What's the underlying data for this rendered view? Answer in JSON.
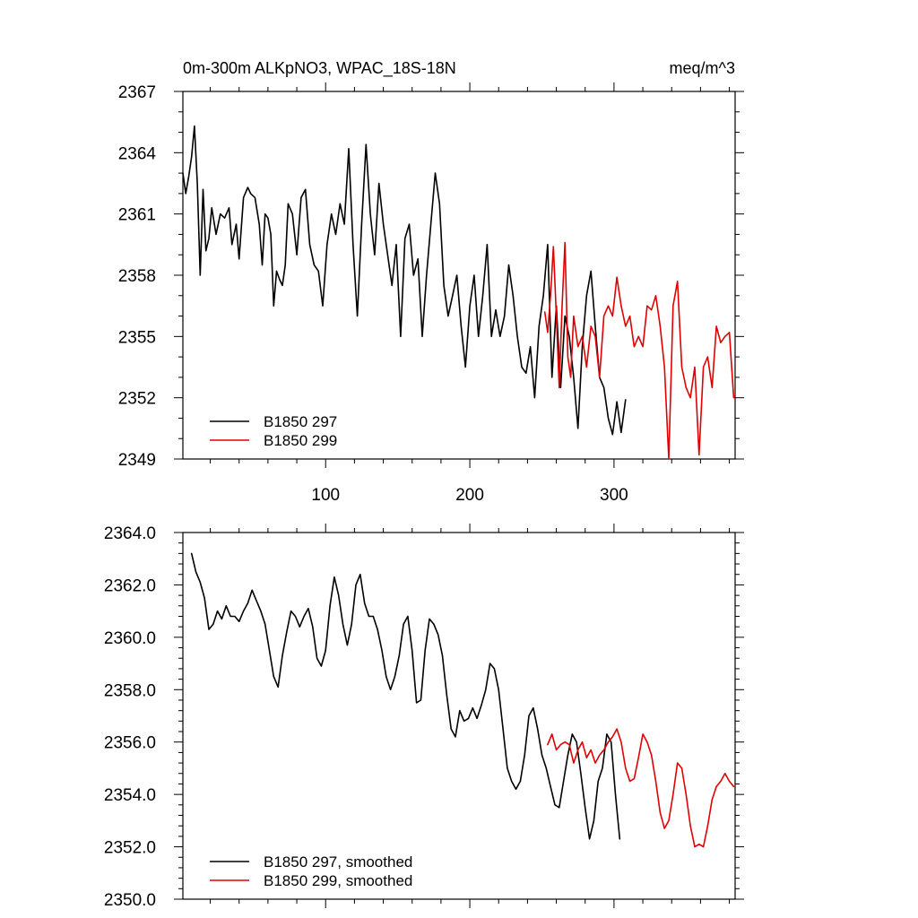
{
  "figure": {
    "title_left": "0m-300m ALKpNO3, WPAC_18S-18N",
    "title_right": "meq/m^3"
  },
  "colors": {
    "series_297": "#000000",
    "series_299": "#e00000"
  },
  "chart_data": [
    {
      "type": "line",
      "title": "0m-300m ALKpNO3, WPAC_18S-18N",
      "units": "meq/m^3",
      "xlim": [
        1,
        384
      ],
      "ylim": [
        2349,
        2367
      ],
      "xticks": [
        100,
        200,
        300
      ],
      "xtick_labels": [
        "100",
        "200",
        "300"
      ],
      "yticks": [
        2349,
        2352,
        2355,
        2358,
        2361,
        2364,
        2367
      ],
      "ytick_labels": [
        "2349",
        "2352",
        "2355",
        "2358",
        "2361",
        "2364",
        "2367"
      ],
      "legend": [
        "B1850 297",
        "B1850 299"
      ],
      "series": [
        {
          "name": "B1850 297",
          "color": "#000000",
          "x": [
            1,
            3,
            5,
            7,
            9,
            11,
            13,
            15,
            17,
            19,
            21,
            24,
            27,
            30,
            33,
            35,
            38,
            40,
            43,
            46,
            48,
            51,
            54,
            56,
            58,
            60,
            62,
            64,
            66,
            68,
            70,
            72,
            74,
            77,
            80,
            83,
            86,
            89,
            92,
            95,
            98,
            101,
            104,
            107,
            110,
            113,
            116,
            119,
            122,
            125,
            128,
            131,
            134,
            137,
            140,
            143,
            146,
            149,
            152,
            155,
            158,
            161,
            164,
            167,
            170,
            173,
            176,
            179,
            182,
            185,
            188,
            191,
            194,
            197,
            200,
            203,
            206,
            209,
            212,
            215,
            218,
            221,
            224,
            227,
            230,
            233,
            236,
            239,
            242,
            245,
            248,
            251,
            254,
            257,
            260,
            263,
            266,
            269,
            272,
            275,
            278,
            281,
            284,
            287,
            290,
            293,
            296,
            299,
            302,
            305,
            308
          ],
          "values": [
            2363.0,
            2362.0,
            2362.8,
            2363.8,
            2365.3,
            2362.5,
            2358.0,
            2362.2,
            2359.2,
            2359.8,
            2361.3,
            2360.0,
            2361.0,
            2360.8,
            2361.3,
            2359.5,
            2360.5,
            2358.8,
            2361.8,
            2362.3,
            2362.0,
            2361.8,
            2360.5,
            2358.5,
            2361.0,
            2360.8,
            2360.0,
            2356.5,
            2358.2,
            2357.8,
            2357.5,
            2358.5,
            2361.5,
            2361.0,
            2359.0,
            2361.8,
            2362.2,
            2359.5,
            2358.5,
            2358.2,
            2356.5,
            2359.5,
            2361.0,
            2360.0,
            2361.5,
            2360.5,
            2364.2,
            2359.5,
            2356.0,
            2360.5,
            2364.4,
            2361.0,
            2359.0,
            2362.5,
            2360.5,
            2359.0,
            2357.5,
            2359.5,
            2355.0,
            2359.8,
            2360.5,
            2358.0,
            2358.8,
            2355.0,
            2358.0,
            2360.5,
            2363.0,
            2361.5,
            2357.5,
            2356.0,
            2357.0,
            2358.0,
            2355.5,
            2353.5,
            2356.5,
            2358.0,
            2355.0,
            2357.0,
            2359.5,
            2355.0,
            2356.3,
            2355.0,
            2356.0,
            2358.5,
            2357.0,
            2355.0,
            2353.5,
            2353.2,
            2354.5,
            2352.0,
            2355.5,
            2357.0,
            2359.5,
            2353.0,
            2356.5,
            2352.5,
            2356.0,
            2355.0,
            2353.0,
            2350.5,
            2354.5,
            2357.0,
            2358.2,
            2355.5,
            2353.0,
            2352.5,
            2351.0,
            2350.2,
            2351.8,
            2350.3,
            2351.9
          ]
        },
        {
          "name": "B1850 299",
          "color": "#e00000",
          "x": [
            252,
            254,
            256,
            258,
            260,
            262,
            264,
            266,
            268,
            270,
            272,
            275,
            278,
            281,
            284,
            287,
            290,
            293,
            296,
            299,
            302,
            305,
            308,
            311,
            314,
            317,
            320,
            323,
            326,
            329,
            332,
            335,
            338,
            341,
            344,
            347,
            350,
            353,
            356,
            359,
            362,
            365,
            368,
            371,
            374,
            377,
            380,
            383,
            384
          ],
          "values": [
            2356.2,
            2355.2,
            2357.0,
            2359.4,
            2356.0,
            2352.5,
            2356.5,
            2359.6,
            2354.0,
            2353.0,
            2356.0,
            2354.5,
            2355.0,
            2353.5,
            2355.5,
            2355.0,
            2353.0,
            2356.0,
            2356.5,
            2356.0,
            2357.9,
            2356.5,
            2355.5,
            2356.0,
            2354.5,
            2355.0,
            2354.5,
            2356.5,
            2356.3,
            2357.0,
            2355.5,
            2353.5,
            2349.0,
            2356.5,
            2357.7,
            2353.5,
            2352.5,
            2352.0,
            2353.5,
            2349.2,
            2353.5,
            2354.0,
            2352.5,
            2355.5,
            2354.7,
            2355.0,
            2355.2,
            2352.0,
            2352.1
          ]
        }
      ]
    },
    {
      "type": "line",
      "xlim": [
        1,
        384
      ],
      "ylim": [
        2350.0,
        2364.0
      ],
      "xticks": [
        100,
        200,
        300
      ],
      "yticks": [
        2350.0,
        2352.0,
        2354.0,
        2356.0,
        2358.0,
        2360.0,
        2362.0,
        2364.0
      ],
      "ytick_labels": [
        "2350.0",
        "2352.0",
        "2354.0",
        "2356.0",
        "2358.0",
        "2360.0",
        "2362.0",
        "2364.0"
      ],
      "legend": [
        "B1850 297, smoothed",
        "B1850 299, smoothed"
      ],
      "series": [
        {
          "name": "B1850 297, smoothed",
          "color": "#000000",
          "x": [
            7,
            10,
            13,
            16,
            19,
            22,
            25,
            28,
            31,
            34,
            37,
            40,
            43,
            46,
            49,
            52,
            55,
            58,
            61,
            64,
            67,
            70,
            73,
            76,
            79,
            82,
            85,
            88,
            91,
            94,
            97,
            100,
            103,
            106,
            109,
            112,
            115,
            118,
            121,
            124,
            127,
            130,
            133,
            136,
            139,
            142,
            145,
            148,
            151,
            154,
            157,
            160,
            163,
            166,
            169,
            172,
            175,
            178,
            181,
            184,
            187,
            190,
            193,
            196,
            199,
            202,
            205,
            208,
            211,
            214,
            217,
            220,
            223,
            226,
            229,
            232,
            235,
            238,
            241,
            244,
            247,
            250,
            253,
            256,
            259,
            262,
            265,
            268,
            271,
            274,
            277,
            280,
            283,
            286,
            289,
            292,
            295,
            298,
            301,
            304
          ],
          "values": [
            2363.2,
            2362.5,
            2362.1,
            2361.5,
            2360.3,
            2360.5,
            2361.0,
            2360.7,
            2361.2,
            2360.8,
            2360.8,
            2360.6,
            2361.0,
            2361.3,
            2361.8,
            2361.4,
            2361.0,
            2360.5,
            2359.5,
            2358.5,
            2358.1,
            2359.3,
            2360.2,
            2361.0,
            2360.8,
            2360.4,
            2360.8,
            2361.1,
            2360.4,
            2359.2,
            2358.9,
            2359.5,
            2361.2,
            2362.3,
            2361.6,
            2360.5,
            2359.7,
            2360.5,
            2362.0,
            2362.4,
            2361.3,
            2360.8,
            2360.8,
            2360.3,
            2359.5,
            2358.5,
            2358.0,
            2358.5,
            2359.3,
            2360.5,
            2360.8,
            2359.5,
            2357.5,
            2357.6,
            2359.5,
            2360.7,
            2360.5,
            2360.1,
            2359.3,
            2357.8,
            2356.5,
            2356.2,
            2357.2,
            2356.8,
            2356.9,
            2357.3,
            2356.9,
            2357.4,
            2358.0,
            2359.0,
            2358.8,
            2358.0,
            2356.5,
            2355.0,
            2354.5,
            2354.2,
            2354.5,
            2355.5,
            2357.0,
            2357.3,
            2356.5,
            2355.5,
            2355.0,
            2354.3,
            2353.6,
            2353.5,
            2354.5,
            2355.5,
            2356.3,
            2356.0,
            2354.8,
            2353.5,
            2352.3,
            2353.0,
            2354.5,
            2355.0,
            2356.3,
            2356.0,
            2354.0,
            2352.3
          ]
        },
        {
          "name": "B1850 299, smoothed",
          "color": "#e00000",
          "x": [
            254,
            257,
            260,
            263,
            266,
            269,
            272,
            275,
            278,
            281,
            284,
            287,
            290,
            293,
            296,
            299,
            302,
            305,
            308,
            311,
            314,
            317,
            320,
            323,
            326,
            329,
            332,
            335,
            338,
            341,
            344,
            347,
            350,
            353,
            356,
            359,
            362,
            365,
            368,
            371,
            374,
            377,
            380,
            383,
            384
          ],
          "values": [
            2355.9,
            2356.3,
            2355.7,
            2355.9,
            2356.0,
            2355.9,
            2355.2,
            2355.7,
            2356.0,
            2355.4,
            2355.7,
            2355.2,
            2355.5,
            2355.7,
            2356.0,
            2356.2,
            2356.5,
            2356.0,
            2355.0,
            2354.5,
            2354.6,
            2355.4,
            2356.3,
            2356.0,
            2355.5,
            2354.5,
            2353.3,
            2352.7,
            2353.0,
            2354.0,
            2355.2,
            2355.0,
            2354.0,
            2352.8,
            2352.0,
            2352.1,
            2352.0,
            2352.8,
            2353.8,
            2354.3,
            2354.5,
            2354.8,
            2354.5,
            2354.3,
            2354.3
          ]
        }
      ]
    }
  ]
}
